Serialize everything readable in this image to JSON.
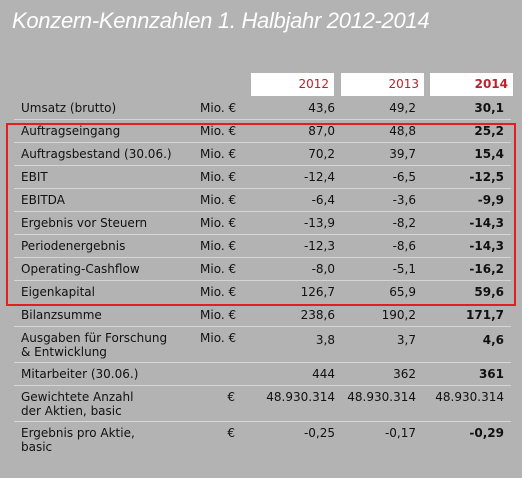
{
  "title": "Konzern-Kennzahlen 1. Halbjahr 2012-2014",
  "years": [
    "2012",
    "2013",
    "2014"
  ],
  "rows": [
    {
      "label": "Umsatz (brutto)",
      "unit": "Mio. €",
      "v2012": "43,6",
      "v2013": "49,2",
      "v2014": "30,1"
    },
    {
      "label": "Auftragseingang",
      "unit": "Mio. €",
      "v2012": "87,0",
      "v2013": "48,8",
      "v2014": "25,2"
    },
    {
      "label": "Auftragsbestand (30.06.)",
      "unit": "Mio. €",
      "v2012": "70,2",
      "v2013": "39,7",
      "v2014": "15,4"
    },
    {
      "label": "EBIT",
      "unit": "Mio. €",
      "v2012": "-12,4",
      "v2013": "-6,5",
      "v2014": "-12,5"
    },
    {
      "label": "EBITDA",
      "unit": "Mio. €",
      "v2012": "-6,4",
      "v2013": "-3,6",
      "v2014": "-9,9"
    },
    {
      "label": "Ergebnis vor Steuern",
      "unit": "Mio. €",
      "v2012": "-13,9",
      "v2013": "-8,2",
      "v2014": "-14,3"
    },
    {
      "label": "Periodenergebnis",
      "unit": "Mio. €",
      "v2012": "-12,3",
      "v2013": "-8,6",
      "v2014": "-14,3"
    },
    {
      "label": "Operating-Cashflow",
      "unit": "Mio. €",
      "v2012": "-8,0",
      "v2013": "-5,1",
      "v2014": "-16,2"
    },
    {
      "label": "Eigenkapital",
      "unit": "Mio. €",
      "v2012": "126,7",
      "v2013": "65,9",
      "v2014": "59,6"
    },
    {
      "label": "Bilanzsumme",
      "unit": "Mio. €",
      "v2012": "238,6",
      "v2013": "190,2",
      "v2014": "171,7"
    },
    {
      "label": "Ausgaben für Forschung",
      "label2": "& Entwicklung",
      "unit": "Mio. €",
      "v2012": "3,8",
      "v2013": "3,7",
      "v2014": "4,6"
    },
    {
      "label": "Mitarbeiter (30.06.)",
      "unit": "",
      "v2012": "444",
      "v2013": "362",
      "v2014": "361"
    },
    {
      "label": "Gewichtete Anzahl",
      "label2": "der Aktien, basic",
      "unit": "€",
      "v2012": "48.930.314",
      "v2013": "48.930.314",
      "v2014": "48.930.314"
    },
    {
      "label": "Ergebnis pro Aktie,",
      "label2": "basic",
      "unit": "€",
      "v2012": "-0,25",
      "v2013": "-0,17",
      "v2014": "-0,29"
    }
  ]
}
